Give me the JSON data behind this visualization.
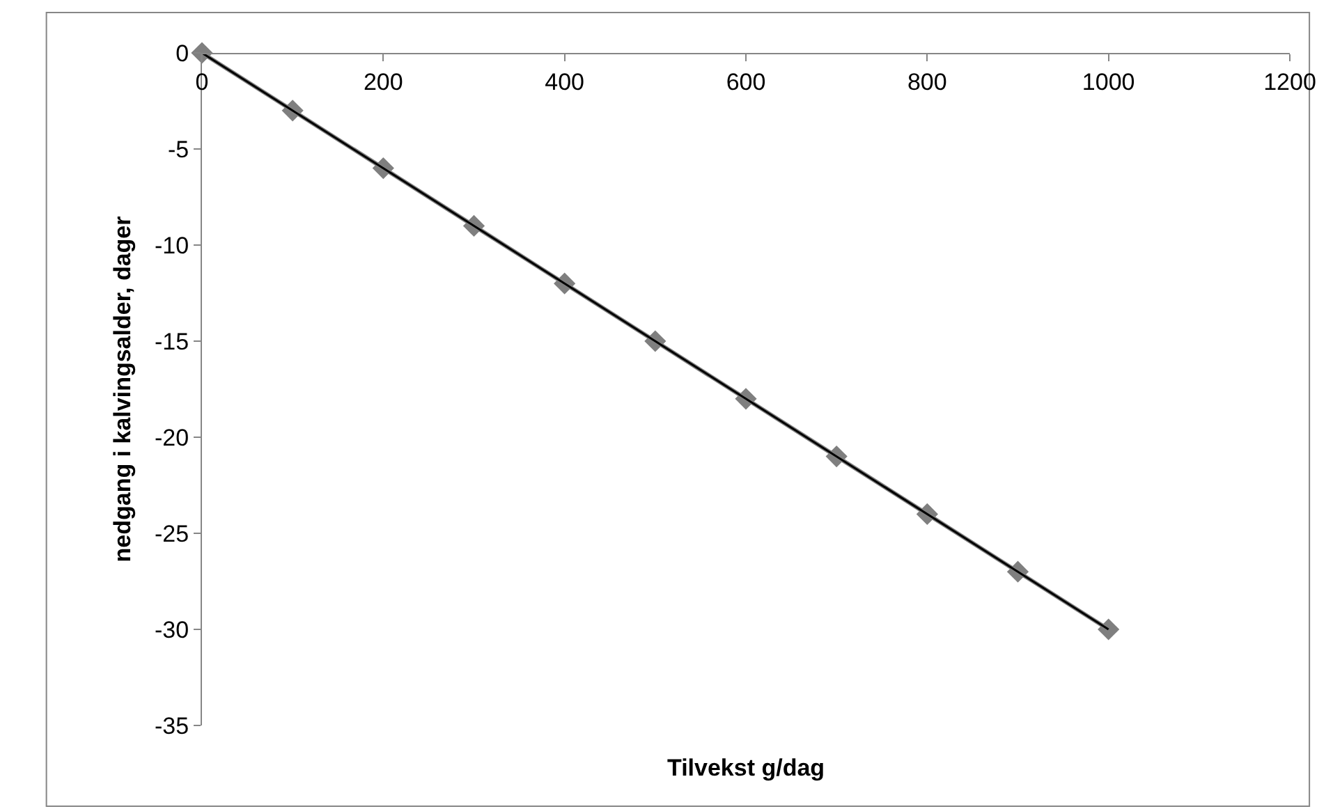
{
  "chart_data": {
    "type": "line",
    "xlabel": "Tilvekst g/dag",
    "ylabel": "nedgang i kalvingsalder, dager",
    "x": [
      0,
      100,
      200,
      300,
      400,
      500,
      600,
      700,
      800,
      900,
      1000
    ],
    "series": [
      {
        "color": "#7f7f7f",
        "values": [
          0,
          -3,
          -6,
          -9,
          -12,
          -15,
          -18,
          -21,
          -24,
          -27,
          -30
        ],
        "marker": "diamond"
      },
      {
        "color": "#000000",
        "x": [
          0,
          1000
        ],
        "values": [
          0,
          -30
        ],
        "marker": "none"
      }
    ],
    "xlim": [
      0,
      1200
    ],
    "xticks": [
      0,
      200,
      400,
      600,
      800,
      1000,
      1200
    ],
    "ylim": [
      -35,
      0
    ],
    "yticks": [
      -35,
      -30,
      -25,
      -20,
      -15,
      -10,
      -5,
      0
    ]
  }
}
